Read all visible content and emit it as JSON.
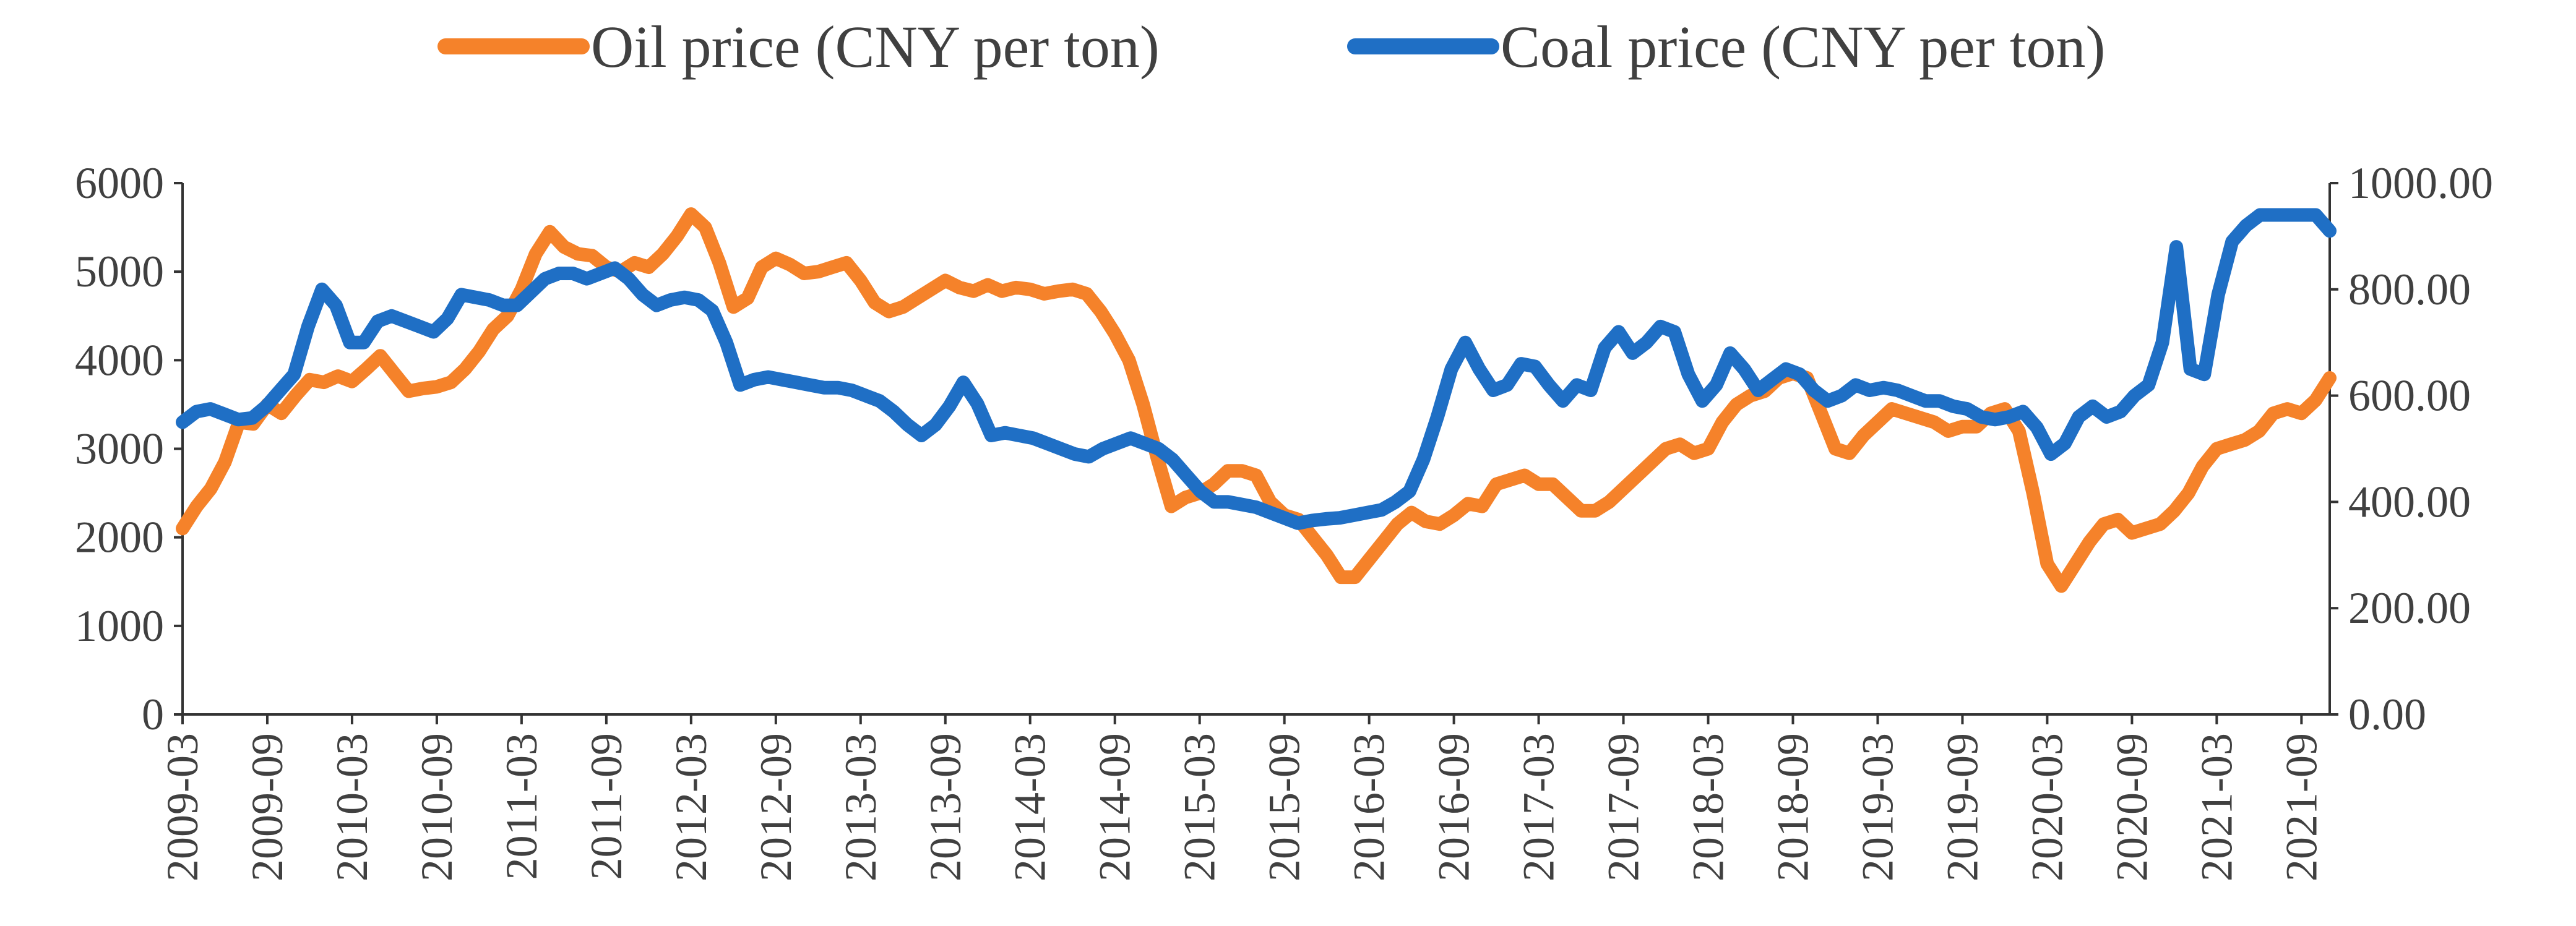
{
  "chart_data": {
    "type": "line",
    "title": "",
    "xlabel": "",
    "ylabel_left": "",
    "ylabel_right": "",
    "legend_position": "top",
    "grid": false,
    "x_tick_labels": [
      "2009-03",
      "2009-09",
      "2010-03",
      "2010-09",
      "2011-03",
      "2011-09",
      "2012-03",
      "2012-09",
      "2013-03",
      "2013-09",
      "2014-03",
      "2014-09",
      "2015-03",
      "2015-09",
      "2016-03",
      "2016-09",
      "2017-03",
      "2017-09",
      "2018-03",
      "2018-09",
      "2019-03",
      "2019-09",
      "2020-03",
      "2020-09",
      "2021-03",
      "2021-09"
    ],
    "y_left": {
      "min": 0,
      "max": 6000,
      "ticks": [
        "0",
        "1000",
        "2000",
        "3000",
        "4000",
        "5000",
        "6000"
      ]
    },
    "y_right": {
      "min": 0,
      "max": 1000,
      "ticks": [
        "0.00",
        "200.00",
        "400.00",
        "600.00",
        "800.00",
        "1000.00"
      ]
    },
    "series": [
      {
        "name": "Oil price (CNY per ton)",
        "color": "#F5822A",
        "axis": "left",
        "values": [
          2100,
          2350,
          2550,
          2850,
          3300,
          3280,
          3500,
          3400,
          3600,
          3780,
          3750,
          3820,
          3760,
          3900,
          4050,
          3850,
          3650,
          3680,
          3700,
          3750,
          3900,
          4100,
          4350,
          4500,
          4800,
          5200,
          5450,
          5280,
          5200,
          5180,
          5050,
          5000,
          5100,
          5050,
          5200,
          5400,
          5650,
          5500,
          5100,
          4600,
          4700,
          5050,
          5150,
          5080,
          4980,
          5000,
          5050,
          5100,
          4900,
          4650,
          4550,
          4600,
          4700,
          4800,
          4900,
          4820,
          4780,
          4850,
          4780,
          4820,
          4800,
          4750,
          4780,
          4800,
          4750,
          4550,
          4300,
          4000,
          3500,
          2900,
          2350,
          2450,
          2500,
          2600,
          2750,
          2750,
          2700,
          2400,
          2250,
          2200,
          2000,
          1800,
          1550,
          1550,
          1750,
          1950,
          2150,
          2280,
          2180,
          2150,
          2250,
          2380,
          2350,
          2600,
          2650,
          2700,
          2600,
          2600,
          2450,
          2300,
          2300,
          2400,
          2550,
          2700,
          2850,
          3000,
          3050,
          2950,
          3000,
          3300,
          3500,
          3600,
          3650,
          3800,
          3850,
          3800,
          3400,
          3000,
          2950,
          3150,
          3300,
          3450,
          3400,
          3350,
          3300,
          3200,
          3250,
          3250,
          3400,
          3450,
          3200,
          2500,
          1700,
          1450,
          1700,
          1950,
          2150,
          2200,
          2050,
          2100,
          2150,
          2300,
          2500,
          2800,
          3000,
          3050,
          3100,
          3200,
          3400,
          3450,
          3400,
          3550,
          3800
        ]
      },
      {
        "name": "Coal price (CNY per ton)",
        "color": "#1F6FC5",
        "axis": "right",
        "values": [
          550,
          570,
          575,
          565,
          555,
          558,
          580,
          610,
          640,
          730,
          800,
          770,
          700,
          700,
          740,
          750,
          740,
          730,
          720,
          745,
          790,
          785,
          780,
          770,
          770,
          795,
          820,
          830,
          830,
          820,
          830,
          840,
          820,
          790,
          770,
          780,
          785,
          780,
          760,
          700,
          620,
          630,
          635,
          630,
          625,
          620,
          615,
          615,
          610,
          600,
          590,
          570,
          545,
          525,
          545,
          580,
          625,
          585,
          525,
          530,
          525,
          520,
          510,
          500,
          490,
          485,
          500,
          510,
          520,
          510,
          500,
          480,
          450,
          420,
          400,
          400,
          395,
          390,
          380,
          370,
          360,
          365,
          368,
          370,
          375,
          380,
          385,
          400,
          420,
          480,
          560,
          650,
          700,
          650,
          610,
          620,
          660,
          655,
          620,
          590,
          620,
          610,
          690,
          720,
          680,
          700,
          730,
          720,
          640,
          590,
          620,
          680,
          650,
          610,
          630,
          650,
          640,
          610,
          590,
          600,
          620,
          610,
          615,
          610,
          600,
          590,
          590,
          580,
          575,
          560,
          555,
          560,
          570,
          540,
          490,
          510,
          560,
          580,
          560,
          570,
          600,
          620,
          700,
          880,
          650,
          640,
          790,
          890,
          920,
          940,
          940,
          940,
          940,
          940,
          910
        ]
      }
    ]
  }
}
